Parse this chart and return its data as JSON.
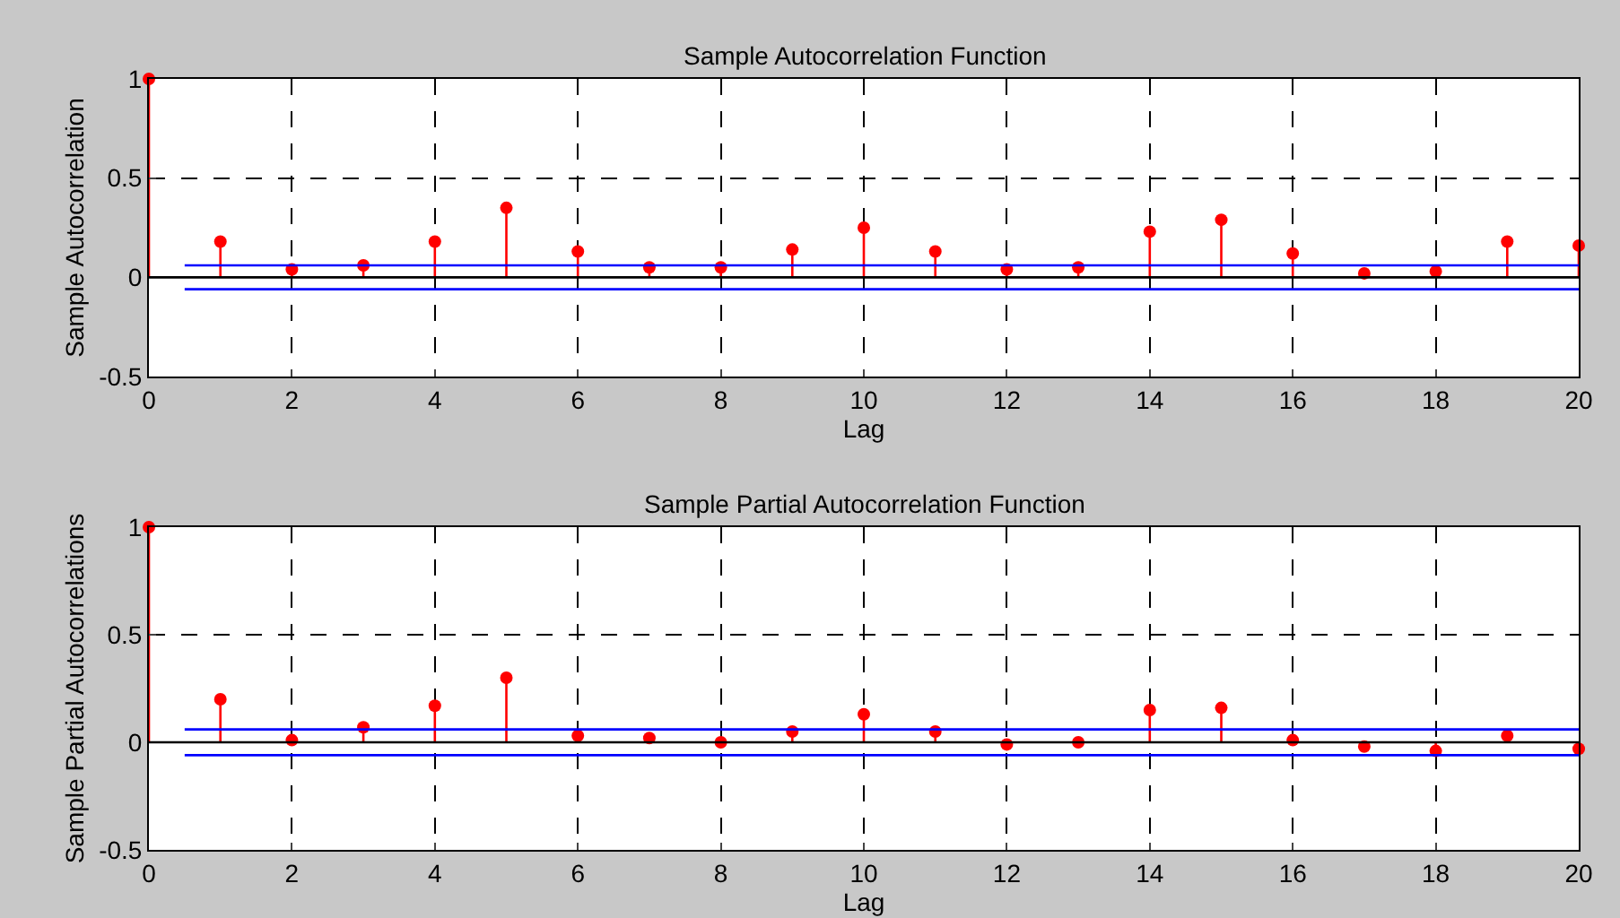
{
  "chart_data": [
    {
      "type": "lollipop",
      "title": "Sample Autocorrelation Function",
      "xlabel": "Lag",
      "ylabel": "Sample Autocorrelation",
      "x": [
        0,
        1,
        2,
        3,
        4,
        5,
        6,
        7,
        8,
        9,
        10,
        11,
        12,
        13,
        14,
        15,
        16,
        17,
        18,
        19,
        20
      ],
      "series": [
        {
          "color": "#ff0000",
          "values": [
            1,
            0.18,
            0.04,
            0.06,
            0.18,
            0.35,
            0.13,
            0.05,
            0.05,
            0.14,
            0.25,
            0.13,
            0.04,
            0.05,
            0.23,
            0.29,
            0.12,
            0.02,
            0.03,
            0.18,
            0.16
          ]
        }
      ],
      "xlim": [
        0,
        20
      ],
      "xticks": [
        0,
        2,
        4,
        6,
        8,
        10,
        12,
        14,
        16,
        18,
        20
      ],
      "ylim": [
        -0.5,
        1
      ],
      "yticks": [
        -0.5,
        0,
        0.5,
        1
      ],
      "grid": true,
      "marker": "circle",
      "ref_lines": [
        {
          "axis": "y",
          "value": 0,
          "color": "#000000"
        },
        {
          "axis": "y",
          "value": 0.06,
          "color": "#0000ff"
        },
        {
          "axis": "y",
          "value": -0.06,
          "color": "#0000ff"
        }
      ]
    },
    {
      "type": "lollipop",
      "title": "Sample Partial Autocorrelation Function",
      "xlabel": "Lag",
      "ylabel": "Sample Partial Autocorrelations",
      "x": [
        0,
        1,
        2,
        3,
        4,
        5,
        6,
        7,
        8,
        9,
        10,
        11,
        12,
        13,
        14,
        15,
        16,
        17,
        18,
        19,
        20
      ],
      "series": [
        {
          "color": "#ff0000",
          "values": [
            1,
            0.2,
            0.01,
            0.07,
            0.17,
            0.3,
            0.03,
            0.02,
            0.0,
            0.05,
            0.13,
            0.05,
            -0.01,
            0.0,
            0.15,
            0.16,
            0.01,
            -0.02,
            -0.04,
            0.03,
            -0.03
          ]
        }
      ],
      "xlim": [
        0,
        20
      ],
      "xticks": [
        0,
        2,
        4,
        6,
        8,
        10,
        12,
        14,
        16,
        18,
        20
      ],
      "ylim": [
        -0.5,
        1
      ],
      "yticks": [
        -0.5,
        0,
        0.5,
        1
      ],
      "grid": true,
      "marker": "circle",
      "ref_lines": [
        {
          "axis": "y",
          "value": 0,
          "color": "#000000"
        },
        {
          "axis": "y",
          "value": 0.06,
          "color": "#0000ff"
        },
        {
          "axis": "y",
          "value": -0.06,
          "color": "#0000ff"
        }
      ]
    }
  ]
}
